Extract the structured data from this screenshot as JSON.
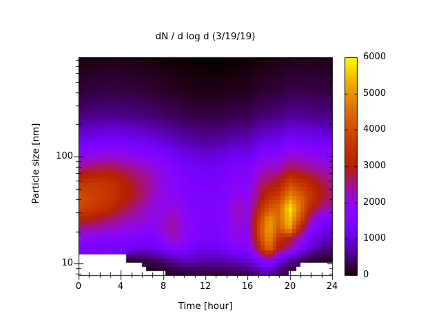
{
  "figure": {
    "title": "dN / d log d (3/19/19)",
    "x_axis": {
      "label": "Time [hour]",
      "range": [
        0,
        24
      ],
      "major_ticks": [
        0,
        4,
        8,
        12,
        16,
        20,
        24
      ],
      "minor_step": 1
    },
    "y_axis": {
      "label": "Particle size [nm]",
      "scale": "log",
      "range": [
        7.8,
        850
      ],
      "major_ticks": [
        10,
        100
      ],
      "minor_ticks": [
        8,
        9,
        20,
        30,
        40,
        50,
        60,
        70,
        80,
        90,
        200,
        300,
        400,
        500,
        600,
        700,
        800
      ]
    },
    "colorbar": {
      "range": [
        0,
        6000
      ],
      "ticks": [
        0,
        1000,
        2000,
        3000,
        4000,
        5000,
        6000
      ],
      "colormap": "gnuplot"
    }
  },
  "chart_data": {
    "type": "heatmap",
    "title": "dN / d log d (3/19/19)",
    "xlabel": "Time [hour]",
    "ylabel": "Particle size [nm]",
    "colormap": "gnuplot",
    "zrange": [
      0,
      6000
    ],
    "x_hours": [
      0,
      1,
      2,
      3,
      4,
      5,
      6,
      7,
      8,
      9,
      10,
      11,
      12,
      13,
      14,
      15,
      16,
      17,
      18,
      19,
      20,
      21,
      22,
      23,
      24
    ],
    "y_sizes_nm": [
      7.5,
      9,
      11,
      14,
      17,
      21,
      26,
      33,
      42,
      55,
      75,
      105,
      150,
      230,
      400,
      700,
      1000
    ],
    "values_rows_smallest_size_first": [
      [
        null,
        null,
        null,
        null,
        null,
        null,
        null,
        null,
        null,
        100,
        130,
        150,
        150,
        150,
        160,
        180,
        220,
        500,
        600,
        300,
        null,
        null,
        null,
        null,
        null
      ],
      [
        null,
        null,
        null,
        null,
        null,
        null,
        null,
        150,
        200,
        300,
        400,
        420,
        400,
        400,
        430,
        480,
        550,
        900,
        1100,
        600,
        250,
        null,
        null,
        null,
        null
      ],
      [
        null,
        null,
        null,
        null,
        null,
        200,
        250,
        350,
        500,
        700,
        900,
        850,
        750,
        750,
        800,
        900,
        1000,
        1500,
        2200,
        1300,
        700,
        400,
        200,
        150,
        150
      ],
      [
        1500,
        1400,
        1300,
        1250,
        1250,
        1200,
        1100,
        1100,
        1400,
        1700,
        1500,
        1300,
        1200,
        1200,
        1400,
        1600,
        1500,
        3000,
        4600,
        2900,
        2400,
        1500,
        900,
        600,
        500
      ],
      [
        1900,
        1800,
        1700,
        1650,
        1600,
        1500,
        1400,
        1400,
        1800,
        2200,
        1800,
        1500,
        1400,
        1400,
        1600,
        1900,
        1700,
        3600,
        5000,
        3400,
        3000,
        2200,
        1300,
        900,
        800
      ],
      [
        2400,
        2300,
        2200,
        2100,
        2000,
        1900,
        1800,
        1700,
        2000,
        2400,
        1900,
        1600,
        1450,
        1450,
        1700,
        2000,
        1800,
        3800,
        5200,
        4200,
        5200,
        3000,
        1800,
        1200,
        1000
      ],
      [
        3100,
        3000,
        2800,
        2600,
        2400,
        2200,
        2100,
        1900,
        2000,
        2300,
        1800,
        1550,
        1450,
        1500,
        1700,
        2100,
        1900,
        3600,
        5000,
        4500,
        5600,
        4000,
        2400,
        1500,
        1300
      ],
      [
        3900,
        3700,
        3500,
        3300,
        2900,
        2600,
        2300,
        2000,
        1900,
        2000,
        1700,
        1500,
        1450,
        1500,
        1700,
        2300,
        1900,
        3000,
        4200,
        4400,
        5900,
        4600,
        3200,
        2500,
        2300
      ],
      [
        4100,
        3900,
        3700,
        3500,
        3200,
        2900,
        2600,
        2200,
        1900,
        1800,
        1600,
        1450,
        1400,
        1450,
        1600,
        1900,
        1800,
        2600,
        3400,
        3800,
        5000,
        4400,
        3600,
        2900,
        2600
      ],
      [
        3500,
        3600,
        3600,
        3500,
        3200,
        2900,
        2600,
        2300,
        1900,
        1700,
        1500,
        1400,
        1350,
        1350,
        1500,
        1700,
        1600,
        2400,
        2800,
        3000,
        4000,
        3600,
        3200,
        2800,
        2500
      ],
      [
        2500,
        2700,
        2800,
        2800,
        2700,
        2500,
        2300,
        2100,
        1800,
        1600,
        1400,
        1300,
        1250,
        1250,
        1350,
        1500,
        1450,
        2000,
        2200,
        2300,
        2800,
        2600,
        2500,
        2300,
        2100
      ],
      [
        1700,
        1800,
        1900,
        1950,
        1900,
        1800,
        1700,
        1550,
        1400,
        1250,
        1100,
        1000,
        950,
        950,
        1050,
        1150,
        1100,
        1450,
        1600,
        1650,
        2000,
        1900,
        1800,
        1700,
        1550
      ],
      [
        1000,
        1100,
        1150,
        1200,
        1150,
        1100,
        1050,
        950,
        850,
        750,
        650,
        600,
        570,
        570,
        620,
        700,
        680,
        900,
        1000,
        1050,
        1250,
        1200,
        1150,
        1100,
        1000
      ],
      [
        500,
        550,
        580,
        600,
        580,
        550,
        520,
        470,
        420,
        370,
        320,
        290,
        270,
        270,
        300,
        340,
        330,
        450,
        500,
        530,
        650,
        620,
        600,
        560,
        520
      ],
      [
        220,
        240,
        260,
        270,
        260,
        250,
        230,
        200,
        170,
        140,
        110,
        90,
        80,
        80,
        95,
        115,
        110,
        180,
        210,
        230,
        300,
        290,
        280,
        260,
        240
      ],
      [
        80,
        90,
        100,
        110,
        105,
        95,
        85,
        70,
        50,
        35,
        20,
        10,
        5,
        5,
        10,
        25,
        25,
        60,
        80,
        90,
        130,
        130,
        130,
        120,
        110
      ],
      [
        30,
        40,
        50,
        55,
        50,
        45,
        40,
        25,
        10,
        5,
        0,
        0,
        null,
        null,
        null,
        0,
        5,
        25,
        40,
        50,
        80,
        90,
        90,
        85,
        80
      ]
    ]
  }
}
